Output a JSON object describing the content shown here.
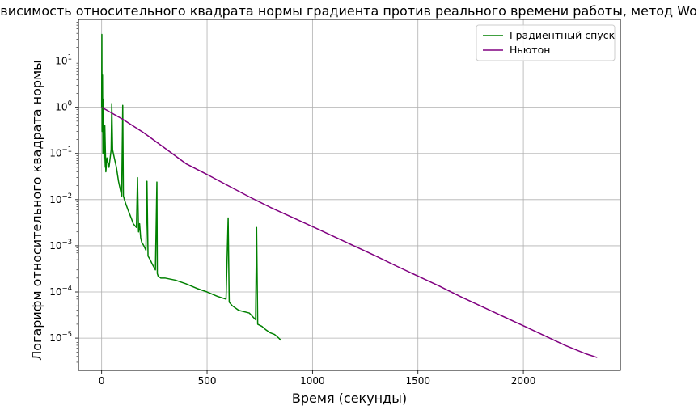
{
  "chart_data": {
    "type": "line",
    "title": "Зависимость относительного квадрата нормы градиента против реального времени работы, метод Wolfe",
    "xlabel": "Время (секунды)",
    "ylabel": "Логарифм относительного квадрата нормы",
    "xlim": [
      -110,
      2460
    ],
    "ylim": [
      2e-06,
      80
    ],
    "yscale": "log",
    "xticks": [
      0,
      500,
      1000,
      1500,
      2000
    ],
    "xtick_labels": [
      "0",
      "500",
      "1000",
      "1500",
      "2000"
    ],
    "yticks": [
      1e-05,
      0.0001,
      0.001,
      0.01,
      0.1,
      1,
      10
    ],
    "ytick_labels": [
      {
        "base": "10",
        "exp": "−5"
      },
      {
        "base": "10",
        "exp": "−4"
      },
      {
        "base": "10",
        "exp": "−3"
      },
      {
        "base": "10",
        "exp": "−2"
      },
      {
        "base": "10",
        "exp": "−1"
      },
      {
        "base": "10",
        "exp": "0"
      },
      {
        "base": "10",
        "exp": "1"
      }
    ],
    "grid": true,
    "legend_position": "top-right",
    "series": [
      {
        "name": "Градиентный спуск",
        "color": "#008000",
        "x": [
          0,
          1,
          2,
          4,
          6,
          8,
          12,
          15,
          20,
          25,
          35,
          45,
          48,
          52,
          60,
          70,
          80,
          95,
          100,
          103,
          108,
          115,
          125,
          140,
          150,
          165,
          170,
          175,
          180,
          185,
          190,
          200,
          210,
          215,
          220,
          230,
          240,
          255,
          262,
          264,
          268,
          280,
          300,
          350,
          400,
          450,
          500,
          550,
          590,
          600,
          605,
          620,
          650,
          700,
          730,
          735,
          740,
          760,
          780,
          800,
          820,
          840,
          850
        ],
        "y": [
          1,
          38,
          0.3,
          5,
          0.1,
          1.5,
          0.05,
          0.4,
          0.04,
          0.08,
          0.05,
          0.12,
          1.2,
          0.12,
          0.08,
          0.05,
          0.025,
          0.012,
          1.1,
          0.012,
          0.01,
          0.008,
          0.006,
          0.004,
          0.003,
          0.0025,
          0.03,
          0.002,
          0.003,
          0.0015,
          0.0012,
          0.001,
          0.0008,
          0.025,
          0.0006,
          0.0005,
          0.0004,
          0.0003,
          0.024,
          0.00025,
          0.00022,
          0.0002,
          0.0002,
          0.00018,
          0.00015,
          0.00012,
          0.0001,
          8e-05,
          7e-05,
          0.004,
          6e-05,
          5e-05,
          4e-05,
          3.5e-05,
          2.5e-05,
          0.0025,
          2e-05,
          1.8e-05,
          1.5e-05,
          1.3e-05,
          1.2e-05,
          1e-05,
          9e-06
        ]
      },
      {
        "name": "Ньютон",
        "color": "#800080",
        "x": [
          0,
          100,
          200,
          300,
          400,
          500,
          600,
          700,
          800,
          900,
          1000,
          1100,
          1200,
          1300,
          1400,
          1500,
          1600,
          1700,
          1800,
          1900,
          2000,
          2100,
          2200,
          2300,
          2350
        ],
        "y": [
          1,
          0.55,
          0.28,
          0.13,
          0.06,
          0.035,
          0.02,
          0.0115,
          0.0068,
          0.0042,
          0.0026,
          0.0016,
          0.00098,
          0.0006,
          0.00036,
          0.00022,
          0.000135,
          8e-05,
          4.9e-05,
          3e-05,
          1.85e-05,
          1.13e-05,
          6.9e-06,
          4.5e-06,
          3.8e-06
        ]
      }
    ]
  }
}
